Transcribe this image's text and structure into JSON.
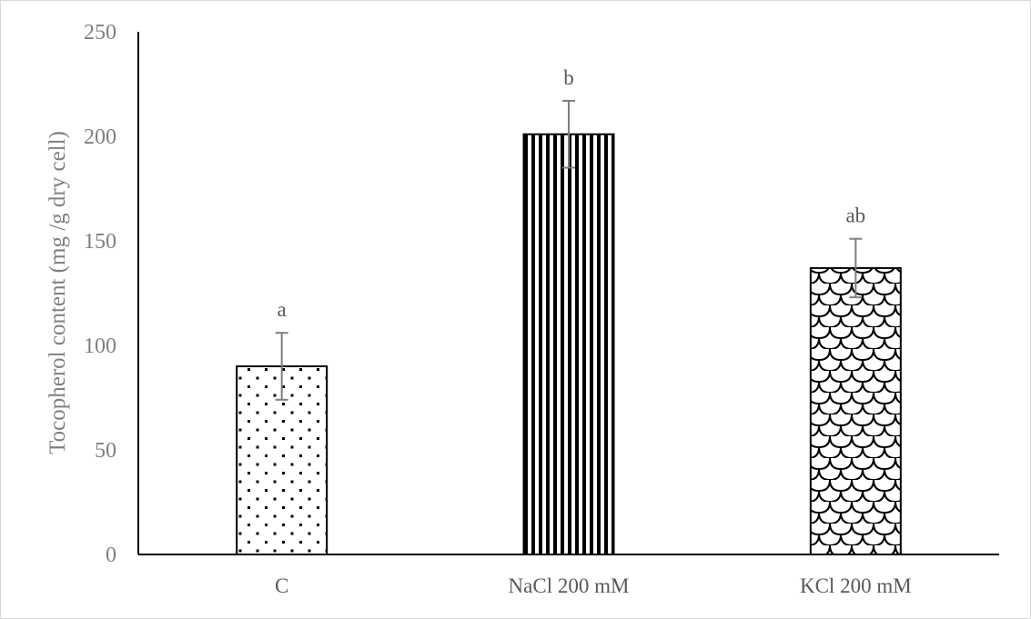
{
  "chart_data": {
    "type": "bar",
    "title": "",
    "xlabel": "",
    "ylabel": "Tocopherol content  (mg /g dry cell)",
    "ylim": [
      0,
      250
    ],
    "yticks": [
      0,
      50,
      100,
      150,
      200,
      250
    ],
    "categories": [
      "C",
      "NaCl 200 mM",
      "KCl 200 mM"
    ],
    "series": [
      {
        "values": [
          90,
          201,
          137
        ],
        "errors": [
          16,
          16,
          14
        ],
        "significance_labels": [
          "a",
          "b",
          "ab"
        ],
        "patterns": [
          "dots",
          "vertical-stripes",
          "scales"
        ]
      }
    ],
    "grid": false,
    "legend": "none",
    "colors": {
      "bar_outline": "#000000",
      "pattern": "#000000",
      "error_bar": "#7f7f7f",
      "axis_line": "#000000",
      "tick_text": "#7f7f7f",
      "category_text": "#595959"
    }
  }
}
